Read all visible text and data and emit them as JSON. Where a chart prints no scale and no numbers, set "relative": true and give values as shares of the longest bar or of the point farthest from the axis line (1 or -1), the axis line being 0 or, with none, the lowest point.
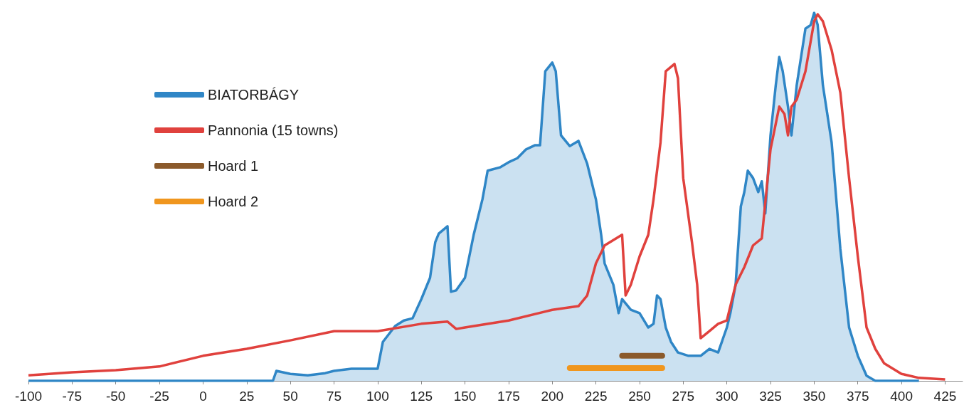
{
  "chart_data": {
    "type": "line",
    "relative": true,
    "xlim": [
      -100,
      435
    ],
    "xticks": [
      -100,
      -75,
      -50,
      -25,
      0,
      25,
      50,
      75,
      100,
      125,
      150,
      175,
      200,
      225,
      250,
      275,
      300,
      325,
      350,
      375,
      400,
      425
    ],
    "grid": false,
    "legend": "top left",
    "marker": "none",
    "line_style": "solid",
    "series": [
      {
        "name": "BIATORBÁGY",
        "type": "area",
        "color": "#2f86c6",
        "x": [
          -100,
          40,
          42,
          50,
          60,
          70,
          75,
          85,
          100,
          103,
          110,
          115,
          120,
          125,
          130,
          133,
          135,
          140,
          142,
          145,
          150,
          155,
          160,
          163,
          170,
          175,
          180,
          185,
          190,
          193,
          196,
          200,
          202,
          205,
          210,
          215,
          220,
          225,
          228,
          230,
          235,
          238,
          240,
          245,
          250,
          255,
          258,
          260,
          262,
          265,
          268,
          272,
          278,
          285,
          290,
          295,
          300,
          302,
          305,
          308,
          310,
          312,
          315,
          318,
          320,
          322,
          325,
          328,
          330,
          332,
          335,
          337,
          340,
          345,
          348,
          350,
          352,
          355,
          360,
          365,
          370,
          375,
          380,
          385,
          410
        ],
        "values": [
          0,
          0,
          0.027,
          0.019,
          0.015,
          0.021,
          0.027,
          0.033,
          0.033,
          0.106,
          0.149,
          0.164,
          0.17,
          0.222,
          0.28,
          0.377,
          0.4,
          0.42,
          0.242,
          0.246,
          0.28,
          0.397,
          0.493,
          0.571,
          0.58,
          0.594,
          0.605,
          0.629,
          0.64,
          0.64,
          0.841,
          0.865,
          0.841,
          0.667,
          0.638,
          0.652,
          0.59,
          0.493,
          0.397,
          0.319,
          0.261,
          0.184,
          0.222,
          0.193,
          0.184,
          0.145,
          0.155,
          0.232,
          0.222,
          0.145,
          0.106,
          0.077,
          0.068,
          0.068,
          0.087,
          0.077,
          0.145,
          0.184,
          0.261,
          0.474,
          0.513,
          0.571,
          0.551,
          0.513,
          0.542,
          0.455,
          0.667,
          0.803,
          0.88,
          0.841,
          0.745,
          0.667,
          0.803,
          0.957,
          0.967,
          1,
          0.967,
          0.803,
          0.648,
          0.358,
          0.145,
          0.068,
          0.014,
          0,
          0
        ]
      },
      {
        "name": "Pannonia (15 towns)",
        "type": "line",
        "color": "#e0413d",
        "x": [
          -100,
          -75,
          -50,
          -25,
          0,
          25,
          50,
          75,
          100,
          125,
          140,
          145,
          150,
          175,
          200,
          215,
          220,
          225,
          230,
          240,
          242,
          245,
          250,
          255,
          258,
          262,
          265,
          270,
          272,
          275,
          280,
          283,
          285,
          290,
          295,
          300,
          305,
          310,
          315,
          320,
          325,
          330,
          333,
          335,
          337,
          340,
          345,
          350,
          352,
          355,
          360,
          365,
          370,
          375,
          380,
          385,
          390,
          400,
          410,
          425
        ],
        "values": [
          0.015,
          0.023,
          0.029,
          0.039,
          0.068,
          0.087,
          0.11,
          0.135,
          0.135,
          0.155,
          0.161,
          0.141,
          0.145,
          0.164,
          0.193,
          0.203,
          0.232,
          0.319,
          0.368,
          0.397,
          0.232,
          0.261,
          0.338,
          0.397,
          0.493,
          0.648,
          0.841,
          0.861,
          0.822,
          0.551,
          0.377,
          0.261,
          0.116,
          0.135,
          0.155,
          0.164,
          0.261,
          0.309,
          0.368,
          0.387,
          0.629,
          0.745,
          0.725,
          0.667,
          0.745,
          0.764,
          0.841,
          0.977,
          0.996,
          0.977,
          0.899,
          0.783,
          0.551,
          0.338,
          0.145,
          0.087,
          0.048,
          0.019,
          0.008,
          0.004
        ]
      },
      {
        "name": "Hoard 1",
        "type": "line",
        "color": "#8b5a2b",
        "x": [
          240,
          263
        ],
        "values": [
          0.068,
          0.068
        ]
      },
      {
        "name": "Hoard 2",
        "type": "line",
        "color": "#f0961e",
        "x": [
          210,
          263
        ],
        "values": [
          0.035,
          0.035
        ]
      }
    ]
  }
}
